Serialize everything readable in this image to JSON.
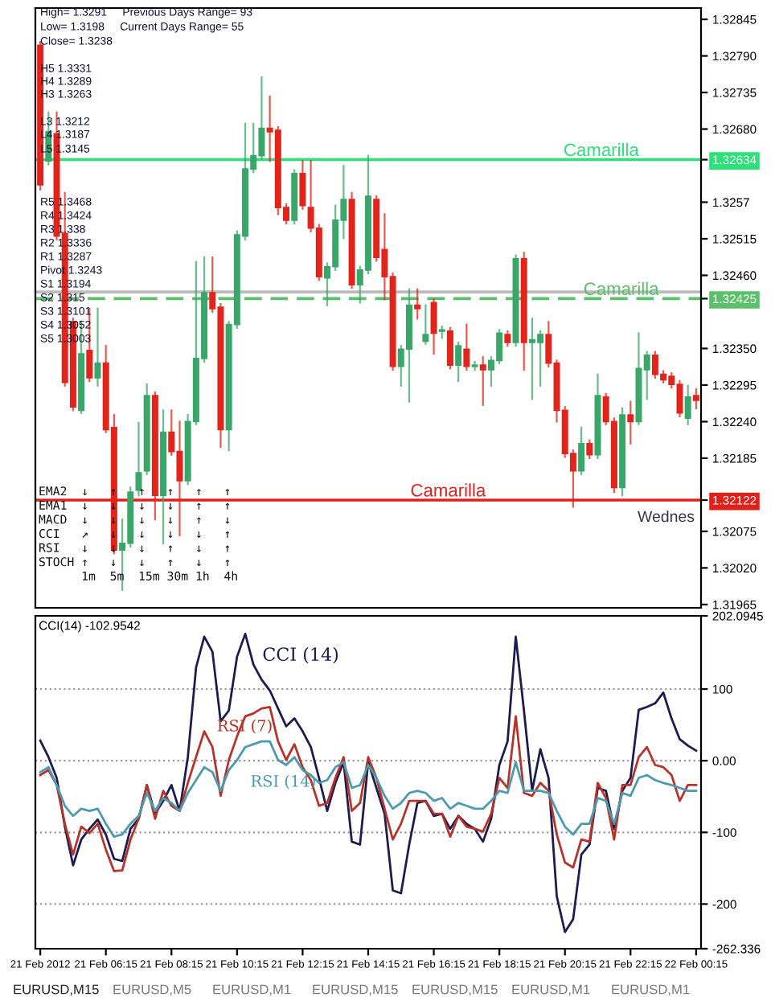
{
  "chart_data": [
    {
      "type": "candlestick",
      "categories": [
        null,
        null,
        null,
        null,
        null,
        null,
        null,
        null,
        null,
        null,
        null,
        null,
        null,
        null,
        null,
        null,
        null,
        null,
        null,
        null,
        null,
        null,
        null,
        null,
        null,
        null,
        null,
        null,
        null,
        null,
        null,
        null,
        null,
        null,
        null,
        null,
        null,
        null,
        null,
        null,
        null,
        null,
        null,
        null,
        null,
        null,
        null,
        null,
        null,
        null,
        null,
        null,
        null,
        null,
        null,
        null,
        null,
        null,
        null,
        null,
        null,
        null,
        null,
        null,
        null,
        null,
        null,
        null,
        null,
        null,
        null,
        null,
        null,
        null,
        null,
        null,
        null,
        null,
        null,
        null,
        null
      ],
      "ohlc": [
        [
          1.32806,
          1.32811,
          1.32589,
          1.32596
        ],
        [
          1.32632,
          1.32705,
          1.32627,
          1.32676
        ],
        [
          1.32673,
          1.32705,
          1.32514,
          1.32519
        ],
        [
          1.32523,
          1.32584,
          1.32294,
          1.32299
        ],
        [
          1.3239,
          1.32395,
          1.32257,
          1.32262
        ],
        [
          1.32257,
          1.3239,
          1.32253,
          1.32342
        ],
        [
          1.32347,
          1.3241,
          1.32301,
          1.32306
        ],
        [
          1.32306,
          1.3241,
          1.32294,
          1.32328
        ],
        [
          1.32328,
          1.32354,
          1.32224,
          1.32228
        ],
        [
          1.32231,
          1.3225,
          1.32042,
          1.32047
        ],
        [
          1.32047,
          1.32093,
          1.31987,
          1.32057
        ],
        [
          1.32057,
          1.32141,
          1.32052,
          1.32134
        ],
        [
          1.32137,
          1.32238,
          1.32129,
          1.32163
        ],
        [
          1.32166,
          1.32296,
          1.32161,
          1.32279
        ],
        [
          1.32279,
          1.32284,
          1.32093,
          1.32129
        ],
        [
          1.32129,
          1.32257,
          1.32057,
          1.32224
        ],
        [
          1.32224,
          1.32257,
          1.3219,
          1.32195
        ],
        [
          1.32195,
          1.3224,
          1.32069,
          1.32151
        ],
        [
          1.32151,
          1.3225,
          1.32146,
          1.3224
        ],
        [
          1.3224,
          1.3248,
          1.32236,
          1.32335
        ],
        [
          1.32335,
          1.32487,
          1.3233,
          1.32434
        ],
        [
          1.32434,
          1.32487,
          1.32405,
          1.3241
        ],
        [
          1.32412,
          1.32417,
          1.32202,
          1.32228
        ],
        [
          1.32228,
          1.3239,
          1.32197,
          1.32386
        ],
        [
          1.32386,
          1.32526,
          1.32381,
          1.32521
        ],
        [
          1.32519,
          1.32688,
          1.32514,
          1.3262
        ],
        [
          1.3262,
          1.32688,
          1.32615,
          1.3264
        ],
        [
          1.3264,
          1.32758,
          1.32635,
          1.32681
        ],
        [
          1.32681,
          1.32729,
          1.32632,
          1.32676
        ],
        [
          1.32678,
          1.32683,
          1.32552,
          1.32562
        ],
        [
          1.32562,
          1.32567,
          1.32538,
          1.32543
        ],
        [
          1.32543,
          1.32618,
          1.32538,
          1.32613
        ],
        [
          1.32613,
          1.32632,
          1.3256,
          1.32565
        ],
        [
          1.32562,
          1.32632,
          1.32526,
          1.32531
        ],
        [
          1.32531,
          1.32536,
          1.32453,
          1.32458
        ],
        [
          1.32456,
          1.32478,
          1.32415,
          1.32473
        ],
        [
          1.32473,
          1.32565,
          1.32468,
          1.32543
        ],
        [
          1.32543,
          1.32625,
          1.32516,
          1.32574
        ],
        [
          1.32574,
          1.32584,
          1.32441,
          1.32446
        ],
        [
          1.32446,
          1.32473,
          1.32419,
          1.32468
        ],
        [
          1.32468,
          1.3264,
          1.32463,
          1.32579
        ],
        [
          1.32574,
          1.32579,
          1.32482,
          1.32487
        ],
        [
          1.32499,
          1.32552,
          1.32424,
          1.32458
        ],
        [
          1.32458,
          1.32463,
          1.32318,
          1.32323
        ],
        [
          1.32323,
          1.32354,
          1.32294,
          1.32349
        ],
        [
          1.32349,
          1.32439,
          1.3227,
          1.32415
        ],
        [
          1.32415,
          1.32439,
          1.32395,
          1.3241
        ],
        [
          1.32361,
          1.32415,
          1.32357,
          1.32371
        ],
        [
          1.32419,
          1.32424,
          1.32342,
          1.32373
        ],
        [
          1.32376,
          1.32383,
          1.32366,
          1.32378
        ],
        [
          1.32376,
          1.32381,
          1.3232,
          1.32325
        ],
        [
          1.32325,
          1.32359,
          1.32301,
          1.32354
        ],
        [
          1.32349,
          1.32386,
          1.32318,
          1.32323
        ],
        [
          1.32323,
          1.3233,
          1.32318,
          1.32325
        ],
        [
          1.32325,
          1.32337,
          1.32265,
          1.32318
        ],
        [
          1.32318,
          1.32337,
          1.32294,
          1.32332
        ],
        [
          1.32332,
          1.32378,
          1.32328,
          1.32373
        ],
        [
          1.32371,
          1.32376,
          1.32354,
          1.32359
        ],
        [
          1.32359,
          1.3249,
          1.32354,
          1.32485
        ],
        [
          1.32485,
          1.32494,
          1.32318,
          1.32359
        ],
        [
          1.32359,
          1.32395,
          1.32274,
          1.32363
        ],
        [
          1.32359,
          1.32376,
          1.32294,
          1.32371
        ],
        [
          1.32371,
          1.3239,
          1.32323,
          1.32328
        ],
        [
          1.32328,
          1.32332,
          1.3224,
          1.32257
        ],
        [
          1.32257,
          1.32262,
          1.32187,
          1.32192
        ],
        [
          1.32192,
          1.32197,
          1.32112,
          1.32166
        ],
        [
          1.32166,
          1.32231,
          1.32161,
          1.32207
        ],
        [
          1.32207,
          1.32212,
          1.32185,
          1.3219
        ],
        [
          1.3219,
          1.32311,
          1.32185,
          1.32279
        ],
        [
          1.32277,
          1.32282,
          1.32236,
          1.3224
        ],
        [
          1.3224,
          1.32245,
          1.32134,
          1.32141
        ],
        [
          1.32141,
          1.3226,
          1.32129,
          1.3225
        ],
        [
          1.3225,
          1.3227,
          1.32207,
          1.3224
        ],
        [
          1.3224,
          1.32373,
          1.32236,
          1.3232
        ],
        [
          1.32318,
          1.32345,
          1.32274,
          1.3234
        ],
        [
          1.3234,
          1.32345,
          1.32306,
          1.32311
        ],
        [
          1.32311,
          1.32316,
          1.32299,
          1.32303
        ],
        [
          1.32308,
          1.32313,
          1.32291,
          1.32296
        ],
        [
          1.32296,
          1.32301,
          1.32248,
          1.32253
        ],
        [
          1.32245,
          1.32294,
          1.32236,
          1.32277
        ],
        [
          1.32279,
          1.32289,
          1.3226,
          1.32272
        ]
      ],
      "ylim": [
        1.3196,
        1.32862
      ],
      "yticks": [
        1.32845,
        {
          "value": 1.3279,
          "label": "1.32790"
        },
        1.32735,
        {
          "value": 1.3268,
          "label": "1.32680"
        },
        1.32634,
        1.3257,
        1.32515,
        {
          "value": 1.3246,
          "label": "1.32460"
        },
        1.32425,
        {
          "value": 1.3235,
          "label": "1.32350"
        },
        1.32295,
        {
          "value": 1.3224,
          "label": "1.32240"
        },
        1.32185,
        1.32122,
        1.32075,
        {
          "value": 1.3202,
          "label": "1.32020"
        },
        1.31965
      ],
      "tick_labels": "y",
      "ref_lines": [
        {
          "axis": "y",
          "value": 1.32634,
          "label": "Camarilla",
          "color": "#2ee07a"
        },
        {
          "axis": "y",
          "value": 1.32435,
          "label": null,
          "color": "#bbbbbb"
        },
        {
          "axis": "y",
          "value": 1.32425,
          "label": "Camarilla",
          "color": "#5cbf6a",
          "line_style": "dashed"
        },
        {
          "axis": "y",
          "value": 1.32122,
          "label": "Camarilla",
          "color": "#e0201b"
        }
      ],
      "annotations": [
        "High= 1.3291     Previous Days Range= 93",
        "Low= 1.3198     Current Days Range= 55",
        "Close= 1.3238",
        "H5 1.3331",
        "H4 1.3289",
        "H3 1.3263",
        "L3 1.3212",
        "L4 1.3187",
        "L5 1.3145",
        "R5 1.3468",
        "R4 1.3424",
        "R3 1.338",
        "R2 1.3336",
        "R1 1.3287",
        "Pivot 1.3243",
        "S1 1.3194",
        "S2 1.315",
        "S3 1.3101",
        "S4 1.3052",
        "S5 1.3003",
        "EMA2  ↓   ↑   ↑   ↑   ↑   ↑",
        "EMA1  ↓   ↓   ↓   ↓   ↑   ↑",
        "MACD  ↓   ↓   ↓   ↓   ↑   ↓",
        "CCI   ↗   ↓   ↓   ↓   ↓   ↑",
        "RSI   ↓   ↓   ↓   ↑   ↓   ↑",
        "STOCH ↑   ↓   ↓   ↑   ↓   ↑",
        "      1m  5m  15m 30m 1h  4h",
        "Wednes"
      ]
    },
    {
      "type": "line",
      "title": "CCI(14) -102.9542",
      "categories": [
        "21 Feb 2012",
        null,
        null,
        null,
        null,
        null,
        null,
        null,
        "21 Feb 06:15",
        null,
        null,
        null,
        null,
        null,
        null,
        null,
        "21 Feb 08:15",
        null,
        null,
        null,
        null,
        null,
        null,
        null,
        "21 Feb 10:15",
        null,
        null,
        null,
        null,
        null,
        null,
        null,
        "21 Feb 12:15",
        null,
        null,
        null,
        null,
        null,
        null,
        null,
        "21 Feb 14:15",
        null,
        null,
        null,
        null,
        null,
        null,
        null,
        "21 Feb 16:15",
        null,
        null,
        null,
        null,
        null,
        null,
        null,
        "21 Feb 18:15",
        null,
        null,
        null,
        null,
        null,
        null,
        null,
        "21 Feb 20:15",
        null,
        null,
        null,
        null,
        null,
        null,
        null,
        "21 Feb 22:15",
        null,
        null,
        null,
        null,
        null,
        null,
        null,
        "22 Feb 00:15"
      ],
      "series": [
        {
          "name": "CCI (14)",
          "color": "#1c1c50",
          "values": [
            28,
            5,
            -24,
            -92,
            -146,
            -110,
            -95,
            -82,
            -103,
            -137,
            -140,
            -95,
            -81,
            -34,
            -74,
            -56,
            -34,
            -70,
            5,
            130,
            173,
            152,
            55,
            70,
            145,
            177,
            134,
            113,
            98,
            73,
            48,
            59,
            41,
            19,
            -24,
            -70,
            -31,
            -2,
            -113,
            -117,
            -2,
            -38,
            -74,
            -181,
            -185,
            -117,
            -59,
            -56,
            -77,
            -74,
            -95,
            -77,
            -88,
            -95,
            -113,
            -81,
            -6,
            27,
            173,
            70,
            -42,
            16,
            -24,
            -189,
            -239,
            -221,
            -131,
            -117,
            -38,
            -42,
            -95,
            -42,
            -24,
            71,
            75,
            80,
            95,
            59,
            30,
            21,
            14
          ]
        },
        {
          "name": "RSI (7)",
          "color": "#b8322a",
          "values": [
            -20,
            -13,
            -34,
            -88,
            -131,
            -92,
            -101,
            -88,
            -124,
            -154,
            -153,
            -110,
            -81,
            -34,
            -81,
            -42,
            -63,
            -70,
            -31,
            5,
            41,
            19,
            -49,
            1,
            34,
            62,
            66,
            73,
            75,
            27,
            1,
            23,
            -9,
            -27,
            -63,
            -59,
            -24,
            5,
            -70,
            -59,
            5,
            -24,
            -67,
            -110,
            -88,
            -56,
            -56,
            -56,
            -74,
            -74,
            -106,
            -77,
            -92,
            -95,
            -99,
            -74,
            -24,
            -38,
            62,
            -45,
            -49,
            -31,
            -42,
            -103,
            -142,
            -149,
            -110,
            -113,
            -31,
            -52,
            -110,
            -34,
            -34,
            5,
            19,
            -6,
            -9,
            -20,
            -56,
            -34,
            -34
          ]
        },
        {
          "name": "RSI (14)",
          "color": "#4c9ab0",
          "values": [
            -16,
            -9,
            -34,
            -63,
            -77,
            -67,
            -70,
            -67,
            -88,
            -106,
            -103,
            -88,
            -77,
            -45,
            -70,
            -52,
            -59,
            -70,
            -45,
            -27,
            -9,
            -16,
            -42,
            -13,
            1,
            19,
            23,
            27,
            27,
            1,
            -6,
            5,
            -13,
            -20,
            -31,
            -27,
            -9,
            -2,
            -38,
            -34,
            -6,
            -24,
            -49,
            -67,
            -59,
            -45,
            -42,
            -45,
            -56,
            -52,
            -67,
            -59,
            -63,
            -67,
            -67,
            -56,
            -42,
            -45,
            -2,
            -42,
            -42,
            -42,
            -45,
            -70,
            -92,
            -103,
            -88,
            -88,
            -52,
            -56,
            -88,
            -45,
            -49,
            -24,
            -20,
            -27,
            -31,
            -34,
            -38,
            -42,
            -42
          ]
        }
      ],
      "ylim": [
        -262.336,
        202.0945
      ],
      "yticks": [
        {
          "value": 202.0945,
          "label": "202.0945"
        },
        100,
        {
          "value": 0,
          "label": "0.00"
        },
        -100,
        -200,
        {
          "value": -262.336,
          "label": "-262.336"
        }
      ],
      "grid": "y",
      "annotations": [
        "EURUSD,M15",
        "EURUSD,M5",
        "EURUSD,M1",
        "EURUSD,M15",
        "EURUSD,M15",
        "EURUSD,M1",
        "EURUSD,M1"
      ]
    }
  ]
}
